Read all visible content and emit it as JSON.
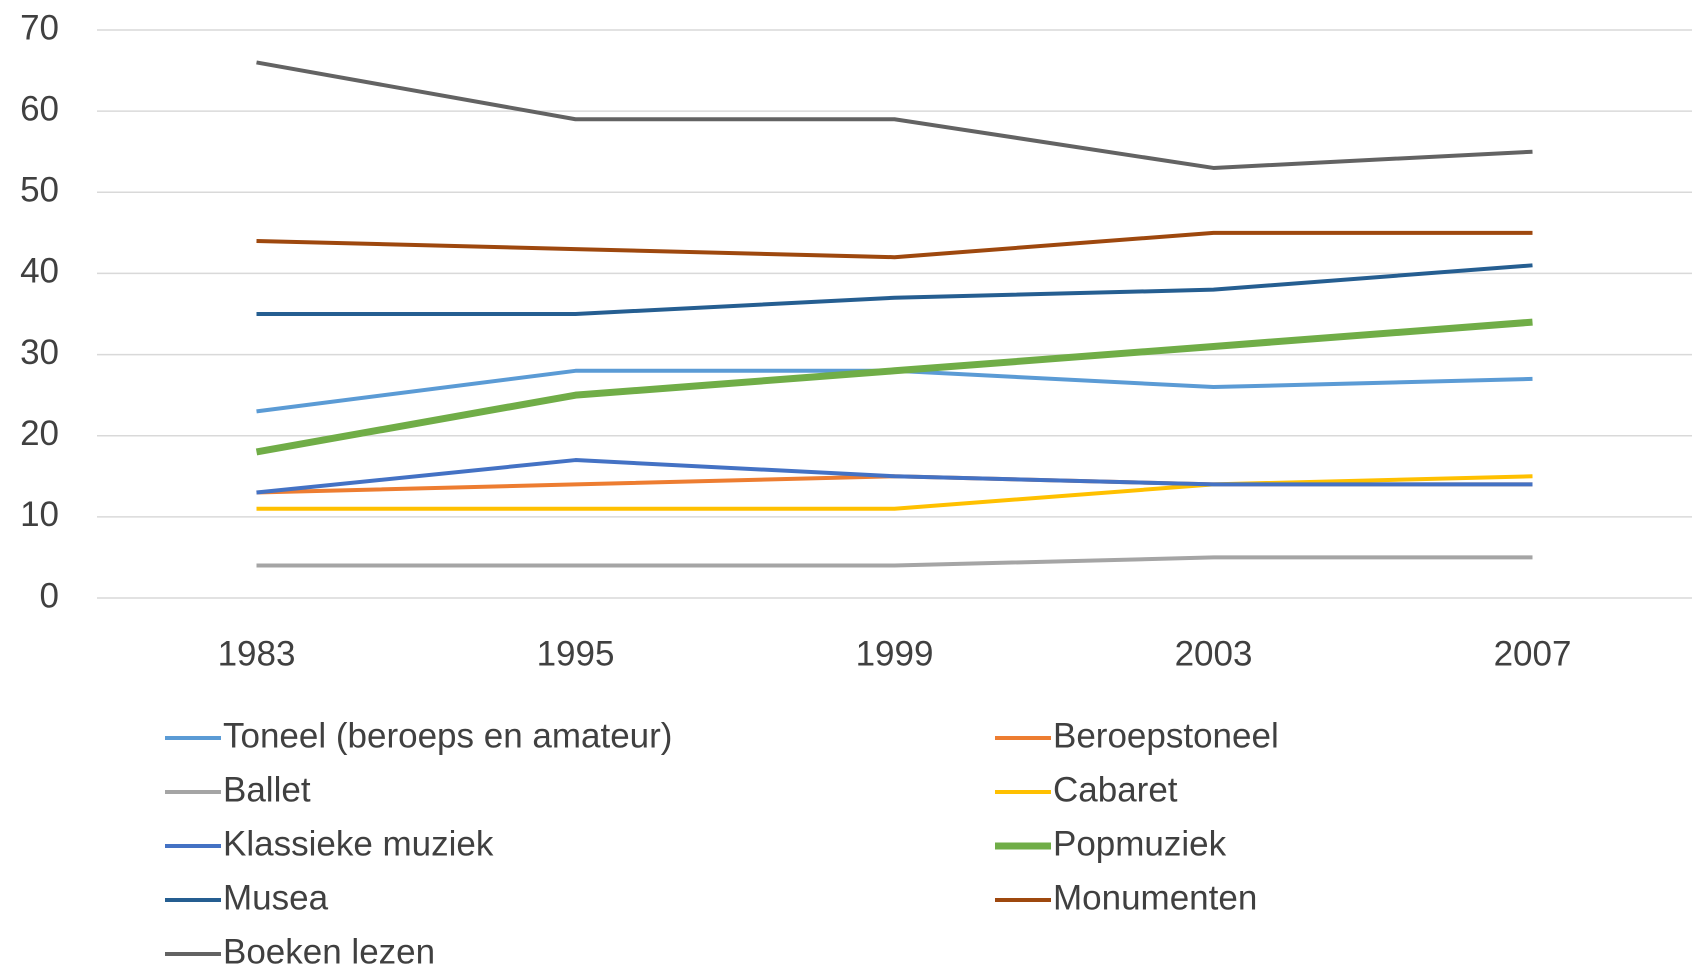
{
  "chart_data": {
    "type": "line",
    "categories": [
      "1983",
      "1995",
      "1999",
      "2003",
      "2007"
    ],
    "series": [
      {
        "name": "Toneel (beroeps en amateur)",
        "color": "#5b9bd5",
        "values": [
          23,
          28,
          28,
          26,
          27
        ]
      },
      {
        "name": "Beroepstoneel",
        "color": "#ed7d31",
        "values": [
          13,
          14,
          15,
          14,
          14
        ]
      },
      {
        "name": "Ballet",
        "color": "#a5a5a5",
        "values": [
          4,
          4,
          4,
          5,
          5
        ]
      },
      {
        "name": "Cabaret",
        "color": "#ffc000",
        "values": [
          11,
          11,
          11,
          14,
          15
        ]
      },
      {
        "name": "Klassieke muziek",
        "color": "#4472c4",
        "values": [
          13,
          17,
          15,
          14,
          14
        ]
      },
      {
        "name": "Popmuziek",
        "color": "#70ad47",
        "values": [
          18,
          25,
          28,
          31,
          34
        ]
      },
      {
        "name": "Musea",
        "color": "#255e91",
        "values": [
          35,
          35,
          37,
          38,
          41
        ]
      },
      {
        "name": "Monumenten",
        "color": "#9e480e",
        "values": [
          44,
          43,
          42,
          45,
          45
        ]
      },
      {
        "name": "Boeken lezen",
        "color": "#636363",
        "values": [
          66,
          59,
          59,
          53,
          55
        ]
      }
    ],
    "ylim": [
      0,
      70
    ],
    "yticks": [
      0,
      10,
      20,
      30,
      40,
      50,
      60,
      70
    ],
    "grid": true,
    "legend": "bottom"
  }
}
